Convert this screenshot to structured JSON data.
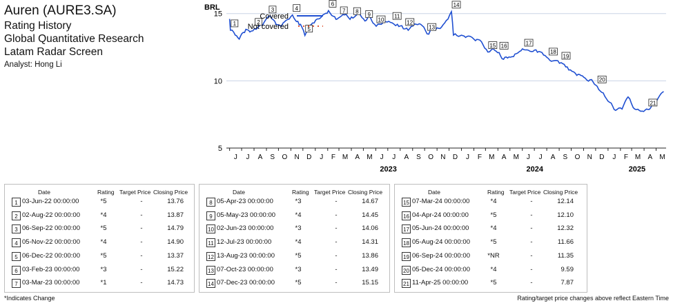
{
  "header": {
    "company": "Auren (AURE3.SA)",
    "line1": "Rating History",
    "line2": "Global Quantitative Research",
    "line3": "Latam Radar Screen",
    "analyst": "Analyst: Hong Li"
  },
  "chart_data": {
    "type": "line",
    "ylabel": "BRL",
    "ylim": [
      5,
      15.6
    ],
    "yticks": [
      "5",
      "10",
      "15"
    ],
    "ytick_values": [
      5,
      10,
      15
    ],
    "grid": true,
    "legend": {
      "position": "top-left",
      "entries": [
        "Covered",
        "Not covered"
      ]
    },
    "month_ticks": [
      "J",
      "J",
      "A",
      "S",
      "O",
      "N",
      "D",
      "J",
      "F",
      "M",
      "A",
      "M",
      "J",
      "J",
      "A",
      "S",
      "O",
      "N",
      "D",
      "J",
      "F",
      "M",
      "A",
      "M",
      "J",
      "J",
      "A",
      "S",
      "O",
      "N",
      "D",
      "J",
      "F",
      "M",
      "A",
      "M"
    ],
    "year_labels": [
      "2023",
      "2024",
      "2025"
    ],
    "colors": {
      "covered": "#1f4fd1",
      "not_covered": "#e05a3a",
      "grid": "#c9d3e6"
    },
    "series": [
      {
        "name": "Covered",
        "points": [
          [
            "2022-06-01",
            14.6
          ],
          [
            "2022-06-03",
            13.76
          ],
          [
            "2022-06-15",
            13.4
          ],
          [
            "2022-06-25",
            13.1
          ],
          [
            "2022-07-05",
            13.6
          ],
          [
            "2022-07-15",
            13.8
          ],
          [
            "2022-07-25",
            13.7
          ],
          [
            "2022-08-02",
            13.87
          ],
          [
            "2022-08-15",
            14.1
          ],
          [
            "2022-08-25",
            14.3
          ],
          [
            "2022-09-06",
            14.79
          ],
          [
            "2022-09-15",
            14.6
          ],
          [
            "2022-09-25",
            14.2
          ],
          [
            "2022-10-05",
            14.1
          ],
          [
            "2022-10-20",
            14.5
          ],
          [
            "2022-11-05",
            14.9
          ],
          [
            "2022-11-15",
            14.4
          ],
          [
            "2022-11-25",
            14.2
          ],
          [
            "2022-12-06",
            13.37
          ],
          [
            "2022-12-15",
            13.8
          ],
          [
            "2022-12-25",
            14.3
          ],
          [
            "2023-01-10",
            14.6
          ],
          [
            "2023-01-20",
            14.9
          ],
          [
            "2023-02-03",
            15.22
          ],
          [
            "2023-02-15",
            14.8
          ],
          [
            "2023-02-25",
            14.6
          ],
          [
            "2023-03-03",
            14.73
          ],
          [
            "2023-03-15",
            14.9
          ],
          [
            "2023-03-25",
            14.7
          ],
          [
            "2023-04-05",
            14.67
          ],
          [
            "2023-04-20",
            15.1
          ],
          [
            "2023-05-05",
            14.45
          ],
          [
            "2023-05-15",
            14.9
          ],
          [
            "2023-05-25",
            14.3
          ],
          [
            "2023-06-02",
            14.06
          ],
          [
            "2023-06-15",
            14.2
          ],
          [
            "2023-06-25",
            14.4
          ],
          [
            "2023-07-12",
            14.31
          ],
          [
            "2023-07-25",
            14.2
          ],
          [
            "2023-08-05",
            14.1
          ],
          [
            "2023-08-13",
            13.86
          ],
          [
            "2023-08-25",
            13.9
          ],
          [
            "2023-09-10",
            14.2
          ],
          [
            "2023-09-25",
            14.1
          ],
          [
            "2023-10-07",
            13.49
          ],
          [
            "2023-10-20",
            13.8
          ],
          [
            "2023-11-05",
            13.9
          ],
          [
            "2023-11-20",
            14.3
          ],
          [
            "2023-12-07",
            15.15
          ],
          [
            "2023-12-12",
            13.4
          ],
          [
            "2023-12-25",
            13.3
          ],
          [
            "2024-01-15",
            13.3
          ],
          [
            "2024-02-01",
            13.1
          ],
          [
            "2024-02-20",
            12.9
          ],
          [
            "2024-03-07",
            12.14
          ],
          [
            "2024-03-20",
            12.4
          ],
          [
            "2024-04-04",
            12.1
          ],
          [
            "2024-04-15",
            11.6
          ],
          [
            "2024-04-25",
            11.7
          ],
          [
            "2024-05-10",
            11.8
          ],
          [
            "2024-06-05",
            12.32
          ],
          [
            "2024-06-20",
            12.2
          ],
          [
            "2024-07-05",
            12.3
          ],
          [
            "2024-07-20",
            12.1
          ],
          [
            "2024-08-05",
            11.66
          ],
          [
            "2024-08-20",
            11.5
          ],
          [
            "2024-09-06",
            11.35
          ],
          [
            "2024-09-25",
            10.8
          ],
          [
            "2024-10-15",
            10.4
          ],
          [
            "2024-11-05",
            10.2
          ],
          [
            "2024-11-25",
            9.9
          ],
          [
            "2024-12-05",
            9.59
          ],
          [
            "2024-12-20",
            9.1
          ],
          [
            "2025-01-05",
            8.4
          ],
          [
            "2025-01-20",
            7.8
          ],
          [
            "2025-02-05",
            7.9
          ],
          [
            "2025-02-20",
            8.8
          ],
          [
            "2025-03-05",
            8.0
          ],
          [
            "2025-03-20",
            7.8
          ],
          [
            "2025-04-11",
            7.87
          ],
          [
            "2025-04-25",
            8.4
          ],
          [
            "2025-05-10",
            8.9
          ],
          [
            "2025-05-20",
            9.2
          ]
        ]
      }
    ],
    "markers": [
      {
        "n": "1",
        "date": "2022-06-03",
        "value": 13.76
      },
      {
        "n": "2",
        "date": "2022-08-02",
        "value": 13.87
      },
      {
        "n": "3",
        "date": "2022-09-06",
        "value": 14.79
      },
      {
        "n": "4",
        "date": "2022-11-05",
        "value": 14.9
      },
      {
        "n": "5",
        "date": "2022-12-06",
        "value": 13.37
      },
      {
        "n": "6",
        "date": "2023-02-03",
        "value": 15.22
      },
      {
        "n": "7",
        "date": "2023-03-03",
        "value": 14.73
      },
      {
        "n": "8",
        "date": "2023-04-05",
        "value": 14.67
      },
      {
        "n": "9",
        "date": "2023-05-05",
        "value": 14.45
      },
      {
        "n": "10",
        "date": "2023-06-02",
        "value": 14.06
      },
      {
        "n": "11",
        "date": "2023-07-12",
        "value": 14.31
      },
      {
        "n": "12",
        "date": "2023-08-13",
        "value": 13.86
      },
      {
        "n": "13",
        "date": "2023-10-07",
        "value": 13.49
      },
      {
        "n": "14",
        "date": "2023-12-07",
        "value": 15.15
      },
      {
        "n": "15",
        "date": "2024-03-07",
        "value": 12.14
      },
      {
        "n": "16",
        "date": "2024-04-04",
        "value": 12.1
      },
      {
        "n": "17",
        "date": "2024-06-05",
        "value": 12.32
      },
      {
        "n": "18",
        "date": "2024-08-05",
        "value": 11.66
      },
      {
        "n": "19",
        "date": "2024-09-06",
        "value": 11.35
      },
      {
        "n": "20",
        "date": "2024-12-05",
        "value": 9.59
      },
      {
        "n": "21",
        "date": "2025-04-11",
        "value": 7.87
      }
    ]
  },
  "table": {
    "headers": {
      "date": "Date",
      "rating": "Rating",
      "target": "Target Price",
      "close": "Closing Price"
    },
    "groups": [
      [
        {
          "n": "1",
          "date": "03-Jun-22 00:00:00",
          "rating": "*5",
          "target": "-",
          "close": "13.76"
        },
        {
          "n": "2",
          "date": "02-Aug-22 00:00:00",
          "rating": "*4",
          "target": "-",
          "close": "13.87"
        },
        {
          "n": "3",
          "date": "06-Sep-22 00:00:00",
          "rating": "*5",
          "target": "-",
          "close": "14.79"
        },
        {
          "n": "4",
          "date": "05-Nov-22 00:00:00",
          "rating": "*4",
          "target": "-",
          "close": "14.90"
        },
        {
          "n": "5",
          "date": "06-Dec-22 00:00:00",
          "rating": "*5",
          "target": "-",
          "close": "13.37"
        },
        {
          "n": "6",
          "date": "03-Feb-23 00:00:00",
          "rating": "*3",
          "target": "-",
          "close": "15.22"
        },
        {
          "n": "7",
          "date": "03-Mar-23 00:00:00",
          "rating": "*1",
          "target": "-",
          "close": "14.73"
        }
      ],
      [
        {
          "n": "8",
          "date": "05-Apr-23 00:00:00",
          "rating": "*3",
          "target": "-",
          "close": "14.67"
        },
        {
          "n": "9",
          "date": "05-May-23 00:00:00",
          "rating": "*4",
          "target": "-",
          "close": "14.45"
        },
        {
          "n": "10",
          "date": "02-Jun-23 00:00:00",
          "rating": "*3",
          "target": "-",
          "close": "14.06"
        },
        {
          "n": "11",
          "date": "12-Jul-23 00:00:00",
          "rating": "*4",
          "target": "-",
          "close": "14.31"
        },
        {
          "n": "12",
          "date": "13-Aug-23 00:00:00",
          "rating": "*5",
          "target": "-",
          "close": "13.86"
        },
        {
          "n": "13",
          "date": "07-Oct-23 00:00:00",
          "rating": "*3",
          "target": "-",
          "close": "13.49"
        },
        {
          "n": "14",
          "date": "07-Dec-23 00:00:00",
          "rating": "*5",
          "target": "-",
          "close": "15.15"
        }
      ],
      [
        {
          "n": "15",
          "date": "07-Mar-24 00:00:00",
          "rating": "*4",
          "target": "-",
          "close": "12.14"
        },
        {
          "n": "16",
          "date": "04-Apr-24 00:00:00",
          "rating": "*5",
          "target": "-",
          "close": "12.10"
        },
        {
          "n": "17",
          "date": "05-Jun-24 00:00:00",
          "rating": "*4",
          "target": "-",
          "close": "12.32"
        },
        {
          "n": "18",
          "date": "05-Aug-24 00:00:00",
          "rating": "*5",
          "target": "-",
          "close": "11.66"
        },
        {
          "n": "19",
          "date": "06-Sep-24 00:00:00",
          "rating": "*NR",
          "target": "-",
          "close": "11.35"
        },
        {
          "n": "20",
          "date": "05-Dec-24 00:00:00",
          "rating": "*4",
          "target": "-",
          "close": "9.59"
        },
        {
          "n": "21",
          "date": "11-Apr-25 00:00:00",
          "rating": "*5",
          "target": "-",
          "close": "7.87"
        }
      ]
    ]
  },
  "footnotes": {
    "left": "*Indicates Change",
    "right": "Rating/target price changes above reflect Eastern Time"
  }
}
